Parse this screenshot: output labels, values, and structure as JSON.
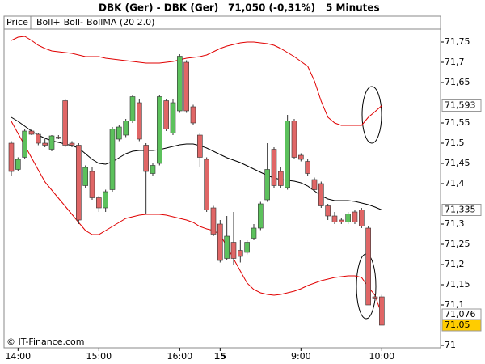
{
  "chart_data": {
    "type": "candlestick",
    "title": "DBK (Ger) - DBK (Ger)",
    "last_quote": "71,050 (-0,31%)",
    "interval": "5 Minutes",
    "watermark": "© IT-Finance.com",
    "categories": [
      null,
      "14:00",
      null,
      null,
      null,
      null,
      null,
      null,
      null,
      null,
      null,
      null,
      null,
      "15:00",
      null,
      null,
      null,
      null,
      null,
      null,
      null,
      null,
      null,
      null,
      null,
      "16:00",
      null,
      null,
      null,
      null,
      null,
      "15",
      null,
      null,
      null,
      null,
      null,
      null,
      null,
      null,
      null,
      null,
      null,
      "9:00",
      null,
      null,
      null,
      null,
      null,
      null,
      null,
      null,
      null,
      null,
      null,
      "10:00"
    ],
    "series": [
      {
        "name": "Price",
        "type": "candlestick",
        "color": "#000000",
        "up_color": "#5cc15c",
        "down_color": "#e06666",
        "label_fill": "#ffcc00",
        "open": [
          71.5,
          71.435,
          71.465,
          71.53,
          71.522,
          71.5,
          71.485,
          71.515,
          71.605,
          71.5,
          71.495,
          71.395,
          71.43,
          71.365,
          71.34,
          71.385,
          71.51,
          71.52,
          71.555,
          71.6,
          71.495,
          71.425,
          71.45,
          71.605,
          71.525,
          71.58,
          71.7,
          71.59,
          71.52,
          71.46,
          71.34,
          71.3,
          71.215,
          71.255,
          71.235,
          71.23,
          71.265,
          71.29,
          71.36,
          71.485,
          71.43,
          71.39,
          71.555,
          71.47,
          71.455,
          71.41,
          71.4,
          71.345,
          71.32,
          71.31,
          71.305,
          71.33,
          71.335,
          71.29,
          71.12,
          71.12
        ],
        "high": [
          71.505,
          71.465,
          71.535,
          71.535,
          71.525,
          71.51,
          71.52,
          71.52,
          71.61,
          71.505,
          71.5,
          71.445,
          71.44,
          71.37,
          71.385,
          71.54,
          71.545,
          71.56,
          71.62,
          71.61,
          71.5,
          71.45,
          71.62,
          71.61,
          71.61,
          71.72,
          71.705,
          71.595,
          71.525,
          71.465,
          71.345,
          71.31,
          71.32,
          71.33,
          71.26,
          71.26,
          71.3,
          71.355,
          71.5,
          71.49,
          71.44,
          71.57,
          71.56,
          71.475,
          71.46,
          71.415,
          71.405,
          71.35,
          71.33,
          71.315,
          71.33,
          71.335,
          71.34,
          71.295,
          71.125,
          71.125
        ],
        "low": [
          71.42,
          71.43,
          71.46,
          71.52,
          71.495,
          71.49,
          71.48,
          71.51,
          71.49,
          71.49,
          71.3,
          71.39,
          71.36,
          71.33,
          71.33,
          71.38,
          71.505,
          71.515,
          71.55,
          71.505,
          71.325,
          71.42,
          71.445,
          71.53,
          71.52,
          71.575,
          71.575,
          71.545,
          71.44,
          71.33,
          71.27,
          71.205,
          71.21,
          71.2,
          71.205,
          71.225,
          71.26,
          71.285,
          71.355,
          71.39,
          71.39,
          71.385,
          71.46,
          71.455,
          71.42,
          71.38,
          71.34,
          71.31,
          71.3,
          71.3,
          71.3,
          71.3,
          71.29,
          71.1,
          71.11,
          71.05
        ],
        "close": [
          71.43,
          71.46,
          71.53,
          71.522,
          71.5,
          71.495,
          71.518,
          71.512,
          71.495,
          71.495,
          71.31,
          71.44,
          71.365,
          71.34,
          71.38,
          71.535,
          71.54,
          71.555,
          71.615,
          71.51,
          71.43,
          71.445,
          71.615,
          71.535,
          71.6,
          71.715,
          71.58,
          71.55,
          71.465,
          71.335,
          71.275,
          71.21,
          71.27,
          71.215,
          71.22,
          71.255,
          71.29,
          71.35,
          71.435,
          71.395,
          71.395,
          71.555,
          71.465,
          71.46,
          71.425,
          71.385,
          71.345,
          71.32,
          71.305,
          71.305,
          71.325,
          71.305,
          71.295,
          71.1,
          71.115,
          71.05
        ],
        "close_labels": [
          null,
          null,
          null,
          null,
          null,
          null,
          null,
          null,
          null,
          null,
          null,
          null,
          null,
          null,
          null,
          null,
          null,
          null,
          null,
          null,
          null,
          null,
          null,
          null,
          null,
          null,
          null,
          null,
          null,
          null,
          null,
          null,
          null,
          null,
          null,
          null,
          null,
          null,
          null,
          null,
          null,
          null,
          null,
          null,
          null,
          null,
          null,
          null,
          null,
          null,
          null,
          null,
          null,
          null,
          null,
          "71,05"
        ]
      },
      {
        "name": "Boll+",
        "type": "line",
        "color": "#e00000",
        "label_fill": "#ffffff",
        "values": [
          71.754,
          71.762,
          71.764,
          71.754,
          71.742,
          71.734,
          71.728,
          71.726,
          71.724,
          71.722,
          71.718,
          71.714,
          71.714,
          71.714,
          71.71,
          71.708,
          71.706,
          71.704,
          71.702,
          71.7,
          71.698,
          71.698,
          71.698,
          71.7,
          71.702,
          71.706,
          71.71,
          71.712,
          71.714,
          71.718,
          71.726,
          71.734,
          71.74,
          71.744,
          71.748,
          71.75,
          71.75,
          71.748,
          71.746,
          71.742,
          71.734,
          71.724,
          71.714,
          71.702,
          71.69,
          71.654,
          71.604,
          71.564,
          71.55,
          71.544,
          71.544,
          71.544,
          71.544,
          71.564,
          71.578,
          71.593
        ],
        "value_labels": [
          null,
          null,
          null,
          null,
          null,
          null,
          null,
          null,
          null,
          null,
          null,
          null,
          null,
          null,
          null,
          null,
          null,
          null,
          null,
          null,
          null,
          null,
          null,
          null,
          null,
          null,
          null,
          null,
          null,
          null,
          null,
          null,
          null,
          null,
          null,
          null,
          null,
          null,
          null,
          null,
          null,
          null,
          null,
          null,
          null,
          null,
          null,
          null,
          null,
          null,
          null,
          null,
          null,
          null,
          null,
          "71,593"
        ]
      },
      {
        "name": "Boll-",
        "type": "line",
        "color": "#e00000",
        "label_fill": "#ffffff",
        "values": [
          71.554,
          71.524,
          71.494,
          71.464,
          71.434,
          71.404,
          71.384,
          71.364,
          71.344,
          71.324,
          71.304,
          71.284,
          71.274,
          71.274,
          71.284,
          71.294,
          71.304,
          71.314,
          71.318,
          71.322,
          71.324,
          71.324,
          71.324,
          71.322,
          71.318,
          71.314,
          71.31,
          71.304,
          71.294,
          71.288,
          71.284,
          71.274,
          71.244,
          71.214,
          71.184,
          71.154,
          71.138,
          71.13,
          71.126,
          71.124,
          71.126,
          71.13,
          71.134,
          71.14,
          71.148,
          71.154,
          71.16,
          71.164,
          71.168,
          71.17,
          71.172,
          71.172,
          71.168,
          71.144,
          71.124,
          71.076
        ],
        "value_labels": [
          null,
          null,
          null,
          null,
          null,
          null,
          null,
          null,
          null,
          null,
          null,
          null,
          null,
          null,
          null,
          null,
          null,
          null,
          null,
          null,
          null,
          null,
          null,
          null,
          null,
          null,
          null,
          null,
          null,
          null,
          null,
          null,
          null,
          null,
          null,
          null,
          null,
          null,
          null,
          null,
          null,
          null,
          null,
          null,
          null,
          null,
          null,
          null,
          null,
          null,
          null,
          null,
          null,
          null,
          null,
          "71,076"
        ]
      },
      {
        "name": "BollMA (20 2.0)",
        "type": "line",
        "color": "#000000",
        "label_fill": "#ffffff",
        "values": [
          71.564,
          71.554,
          71.542,
          71.53,
          71.52,
          71.512,
          71.506,
          71.502,
          71.498,
          71.494,
          71.488,
          71.474,
          71.46,
          71.45,
          71.448,
          71.454,
          71.464,
          71.474,
          71.48,
          71.482,
          71.482,
          71.482,
          71.484,
          71.488,
          71.492,
          71.496,
          71.498,
          71.498,
          71.494,
          71.488,
          71.48,
          71.472,
          71.464,
          71.458,
          71.452,
          71.444,
          71.436,
          71.428,
          71.42,
          71.414,
          71.41,
          71.408,
          71.406,
          71.402,
          71.394,
          71.382,
          71.37,
          71.362,
          71.358,
          71.358,
          71.358,
          71.356,
          71.352,
          71.348,
          71.342,
          71.335
        ],
        "value_labels": [
          null,
          null,
          null,
          null,
          null,
          null,
          null,
          null,
          null,
          null,
          null,
          null,
          null,
          null,
          null,
          null,
          null,
          null,
          null,
          null,
          null,
          null,
          null,
          null,
          null,
          null,
          null,
          null,
          null,
          null,
          null,
          null,
          null,
          null,
          null,
          null,
          null,
          null,
          null,
          null,
          null,
          null,
          null,
          null,
          null,
          null,
          null,
          null,
          null,
          null,
          null,
          null,
          null,
          null,
          null,
          "71,335"
        ]
      }
    ],
    "ylim": [
      70.994,
      71.782
    ],
    "yticks": [
      71,
      {
        "value": 71.1,
        "label": "71,1"
      },
      {
        "value": 71.15,
        "label": "71,15"
      },
      {
        "value": 71.2,
        "label": "71,2"
      },
      {
        "value": 71.25,
        "label": "71,25"
      },
      {
        "value": 71.3,
        "label": "71,3"
      },
      {
        "value": 71.4,
        "label": "71,4"
      },
      {
        "value": 71.45,
        "label": "71,45"
      },
      {
        "value": 71.5,
        "label": "71,5"
      },
      {
        "value": 71.55,
        "label": "71,55"
      },
      {
        "value": 71.65,
        "label": "71,65"
      },
      {
        "value": 71.7,
        "label": "71,7"
      },
      {
        "value": 71.75,
        "label": "71,75"
      }
    ]
  }
}
